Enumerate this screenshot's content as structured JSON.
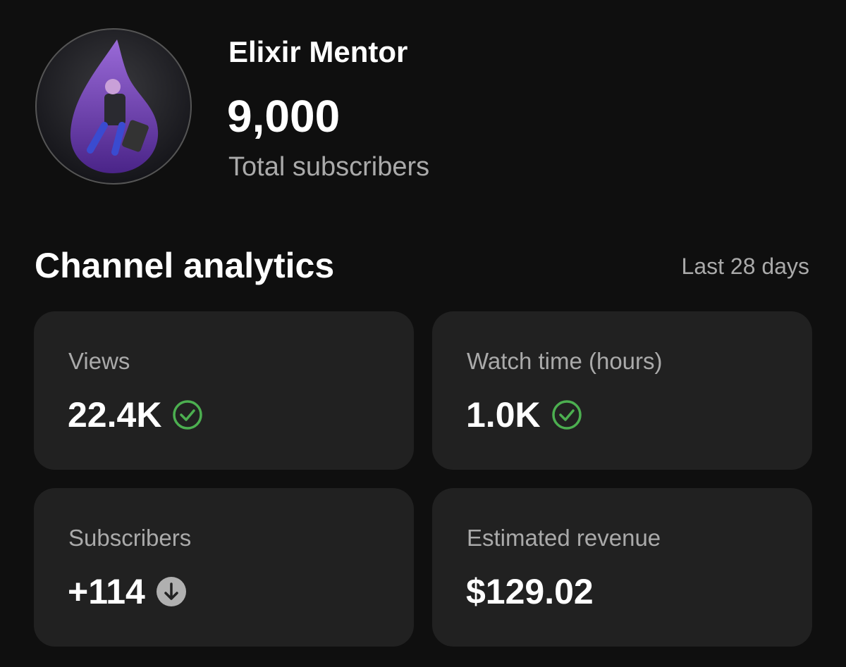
{
  "channel": {
    "name": "Elixir Mentor",
    "subscribers": "9,000",
    "subscribers_label": "Total subscribers"
  },
  "analytics": {
    "title": "Channel analytics",
    "period": "Last 28 days",
    "cards": [
      {
        "label": "Views",
        "value": "22.4K"
      },
      {
        "label": "Watch time (hours)",
        "value": "1.0K"
      },
      {
        "label": "Subscribers",
        "value": "+114"
      },
      {
        "label": "Estimated revenue",
        "value": "$129.02"
      }
    ]
  }
}
